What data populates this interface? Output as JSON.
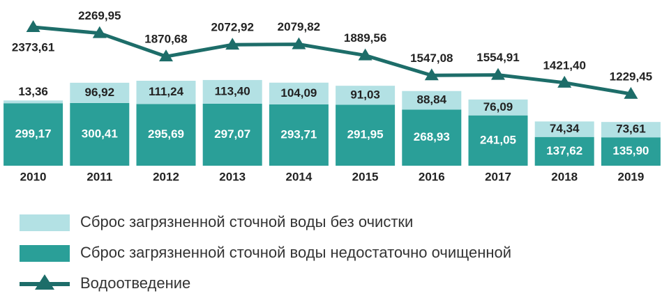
{
  "chart_data": {
    "type": "bar-line",
    "categories": [
      "2010",
      "2011",
      "2012",
      "2013",
      "2014",
      "2015",
      "2016",
      "2017",
      "2018",
      "2019"
    ],
    "series": [
      {
        "name": "Сброс загрязненной сточной воды недостаточно очищенной",
        "color": "#2a9f98",
        "kind": "bar",
        "values": [
          299.17,
          300.41,
          295.69,
          297.07,
          293.71,
          291.95,
          268.93,
          241.05,
          137.62,
          135.9
        ],
        "value_labels": [
          "299,17",
          "300,41",
          "295,69",
          "297,07",
          "293,71",
          "291,95",
          "268,93",
          "241,05",
          "137,62",
          "135,90"
        ]
      },
      {
        "name": "Сброс загрязненной сточной воды без очистки",
        "color": "#b3e1e4",
        "kind": "bar",
        "values": [
          13.36,
          96.92,
          111.24,
          113.4,
          104.09,
          91.03,
          88.84,
          76.09,
          74.34,
          73.61
        ],
        "value_labels": [
          "13,36",
          "96,92",
          "111,24",
          "113,40",
          "104,09",
          "91,03",
          "88,84",
          "76,09",
          "74,34",
          "73,61"
        ]
      },
      {
        "name": "Водоотведение",
        "color": "#1d6d69",
        "kind": "line",
        "axis": "y2",
        "values": [
          2373.61,
          2269.95,
          1870.68,
          2072.92,
          2079.82,
          1889.56,
          1547.08,
          1554.91,
          1421.4,
          1229.45
        ],
        "value_labels": [
          "2373,61",
          "2269,95",
          "1870,68",
          "2072,92",
          "2079,82",
          "1889,56",
          "1547,08",
          "1554,91",
          "1421,40",
          "1229,45"
        ]
      }
    ],
    "ylim": [
      0,
      727
    ],
    "y2lim": [
      0,
      2600
    ]
  }
}
